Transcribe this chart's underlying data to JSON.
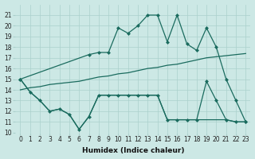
{
  "xlabel": "Humidex (Indice chaleur)",
  "bg_color": "#cce8e5",
  "grid_color": "#aad0cc",
  "line_color": "#1a6b5e",
  "xlim": [
    -0.5,
    23.5
  ],
  "ylim": [
    10,
    22
  ],
  "yticks": [
    10,
    11,
    12,
    13,
    14,
    15,
    16,
    17,
    18,
    19,
    20,
    21
  ],
  "xticks": [
    0,
    1,
    2,
    3,
    4,
    5,
    6,
    7,
    8,
    9,
    10,
    11,
    12,
    13,
    14,
    15,
    16,
    17,
    18,
    19,
    20,
    21,
    22,
    23
  ],
  "line1_x": [
    0,
    1,
    2,
    3,
    4,
    5,
    6,
    7,
    8,
    9,
    10,
    11,
    12,
    13,
    14,
    15,
    16,
    17,
    18,
    19,
    20,
    21,
    22,
    23
  ],
  "line1_y": [
    15.0,
    13.8,
    13.0,
    12.0,
    12.2,
    11.7,
    10.3,
    11.5,
    13.5,
    13.5,
    13.5,
    13.5,
    13.5,
    13.5,
    13.5,
    11.2,
    11.2,
    11.2,
    11.2,
    11.2,
    11.2,
    11.2,
    11.0,
    11.0
  ],
  "line2_x": [
    0,
    1,
    2,
    3,
    4,
    5,
    6,
    7,
    8,
    9,
    10,
    11,
    12,
    13,
    14,
    15,
    16,
    17,
    18,
    19,
    20,
    21,
    22,
    23
  ],
  "line2_y": [
    14.0,
    14.2,
    14.3,
    14.5,
    14.6,
    14.7,
    14.8,
    15.0,
    15.2,
    15.3,
    15.5,
    15.6,
    15.8,
    16.0,
    16.1,
    16.3,
    16.4,
    16.6,
    16.8,
    17.0,
    17.1,
    17.2,
    17.3,
    17.4
  ],
  "line3_x": [
    0,
    7,
    8,
    9,
    10,
    11,
    12,
    13,
    14,
    15,
    16,
    17,
    18,
    19,
    20,
    21,
    22,
    23
  ],
  "line3_y": [
    15.0,
    17.3,
    17.5,
    17.5,
    19.8,
    19.3,
    20.0,
    21.0,
    21.0,
    18.5,
    21.0,
    18.3,
    17.7,
    19.8,
    18.0,
    15.0,
    13.0,
    11.0
  ],
  "line4_x": [
    0,
    1,
    2,
    3,
    4,
    5,
    6,
    7,
    8,
    9,
    10,
    11,
    12,
    13,
    14,
    15,
    16,
    17,
    18,
    19,
    20,
    21,
    22,
    23
  ],
  "line4_y": [
    15.0,
    13.8,
    13.0,
    12.0,
    12.2,
    11.7,
    10.3,
    11.5,
    13.5,
    13.5,
    13.5,
    13.5,
    13.5,
    13.5,
    13.5,
    11.2,
    11.2,
    11.2,
    11.2,
    14.8,
    13.0,
    11.2,
    11.0,
    11.0
  ]
}
